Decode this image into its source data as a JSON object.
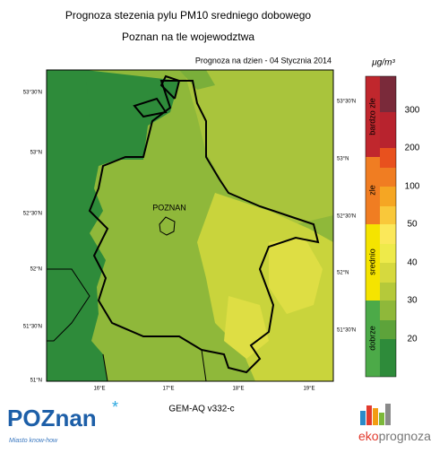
{
  "title": {
    "line1": "Prognoza stezenia pylu PM10 sredniego dobowego",
    "line2": "Poznan na tle wojewodztwa"
  },
  "date": "Prognoza na dzien -  04 Stycznia 2014",
  "unit": "μg/m³",
  "map": {
    "city": "POZNAN",
    "lat_left": [
      "53°30'N",
      "53°N",
      "52°30'N",
      "52°N",
      "51°30'N",
      "51°N"
    ],
    "lat_right": [
      "53°30'N",
      "53°N",
      "52°30'N",
      "52°N",
      "51°30'N"
    ],
    "lon": [
      "16°E",
      "17°E",
      "18°E",
      "19°E"
    ]
  },
  "legend": {
    "categories": [
      "bardzo zle",
      "zle",
      "srednio",
      "dobrze"
    ],
    "scale": [
      "300",
      "200",
      "100",
      "50",
      "40",
      "30",
      "20"
    ]
  },
  "footer": {
    "model": "GEM-AQ v332-c",
    "logo_left": "POZnan",
    "tagline": "Miasto know-how",
    "logo_eko": "eko",
    "logo_prognoza": "prognoza"
  }
}
